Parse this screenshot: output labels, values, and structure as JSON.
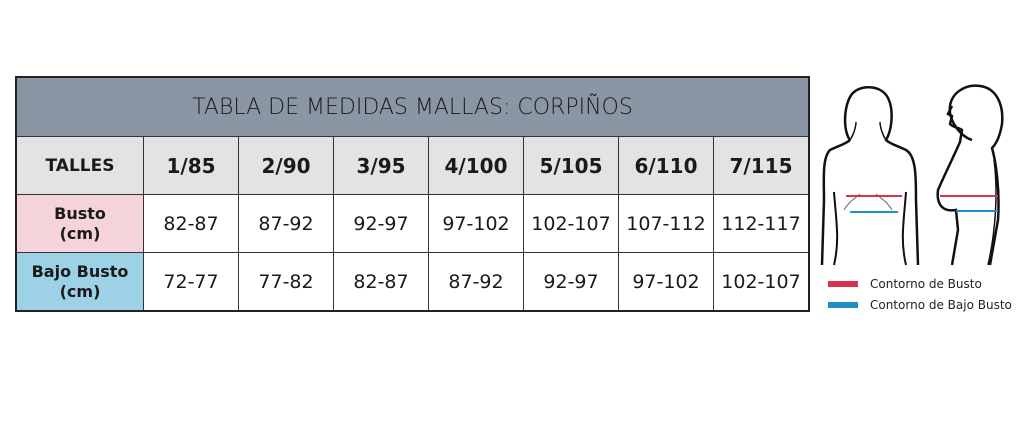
{
  "table": {
    "title": "TABLA DE MEDIDAS MALLAS: CORPIÑOS",
    "header_label": "TALLES",
    "sizes": [
      "1/85",
      "2/90",
      "3/95",
      "4/100",
      "5/105",
      "6/110",
      "7/115"
    ],
    "rows": [
      {
        "label_1": "Busto",
        "label_2": "(cm)",
        "values": [
          "82-87",
          "87-92",
          "92-97",
          "97-102",
          "102-107",
          "107-112",
          "112-117"
        ]
      },
      {
        "label_1": "Bajo Busto",
        "label_2": "(cm)",
        "values": [
          "72-77",
          "77-82",
          "82-87",
          "87-92",
          "92-97",
          "97-102",
          "102-107"
        ]
      }
    ]
  },
  "legend": [
    {
      "label": "Contorno de Busto",
      "color": "#d8324f"
    },
    {
      "label": "Contorno de Bajo Busto",
      "color": "#1f8fc4"
    }
  ],
  "colors": {
    "title_bg": "#8a96a3",
    "header_bg": "#e3e3e5",
    "busto_bg": "#f5d3db",
    "bajo_busto_bg": "#9dd2e6"
  }
}
